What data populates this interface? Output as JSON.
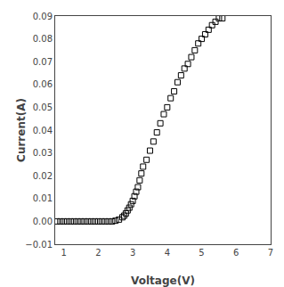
{
  "chart_data": {
    "type": "scatter",
    "xlabel": "Voltage(V)",
    "ylabel": "Current(A)",
    "x": [
      0.8,
      0.9,
      1.0,
      1.1,
      1.2,
      1.3,
      1.4,
      1.5,
      1.6,
      1.7,
      1.8,
      1.9,
      2.0,
      2.1,
      2.2,
      2.3,
      2.4,
      2.5,
      2.6,
      2.7,
      2.75,
      2.8,
      2.85,
      2.9,
      2.95,
      3.0,
      3.05,
      3.1,
      3.15,
      3.2,
      3.25,
      3.3,
      3.4,
      3.5,
      3.6,
      3.7,
      3.8,
      3.9,
      4.0,
      4.1,
      4.2,
      4.3,
      4.4,
      4.5,
      4.6,
      4.7,
      4.8,
      4.9,
      5.0,
      5.1,
      5.2,
      5.3,
      5.4,
      5.5,
      5.6
    ],
    "values": [
      0.0,
      0.0,
      0.0,
      0.0,
      0.0,
      0.0,
      0.0,
      0.0,
      0.0,
      0.0,
      0.0,
      0.0,
      0.0,
      0.0,
      0.0,
      0.0,
      0.0,
      0.0003,
      0.0008,
      0.0018,
      0.0025,
      0.0035,
      0.0048,
      0.006,
      0.0075,
      0.009,
      0.011,
      0.013,
      0.015,
      0.018,
      0.021,
      0.024,
      0.027,
      0.031,
      0.035,
      0.039,
      0.043,
      0.047,
      0.05,
      0.054,
      0.057,
      0.061,
      0.064,
      0.067,
      0.069,
      0.072,
      0.075,
      0.078,
      0.08,
      0.082,
      0.084,
      0.086,
      0.0875,
      0.089,
      0.089
    ],
    "xlim": [
      0.75,
      7.0
    ],
    "ylim": [
      -0.01,
      0.09
    ],
    "xticks": [
      1,
      2,
      3,
      4,
      5,
      6,
      7
    ],
    "yticks": [
      {
        "value": -0.01,
        "label": "−0.01"
      },
      {
        "value": 0,
        "label": "0.00"
      },
      0.01,
      0.02,
      0.03,
      0.04,
      0.05,
      0.06,
      0.07,
      0.08,
      0.09
    ],
    "marker": "square",
    "color": "black",
    "grid": false
  }
}
